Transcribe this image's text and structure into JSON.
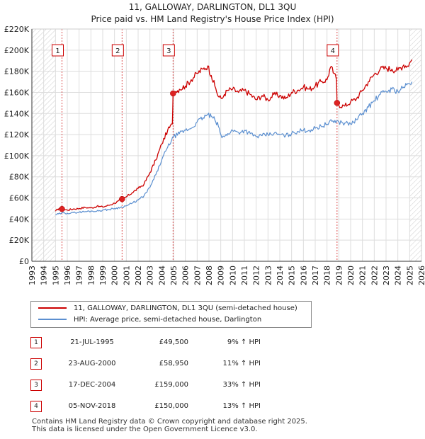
{
  "title": {
    "line1": "11, GALLOWAY, DARLINGTON, DL1 3QU",
    "line2": "Price paid vs. HM Land Registry's House Price Index (HPI)"
  },
  "colors": {
    "property": "#cc0000",
    "hpi": "#5b8fd0",
    "grid": "#dddddd",
    "marker": "#dd2222"
  },
  "chart_data": {
    "type": "line",
    "title": "11, GALLOWAY, DARLINGTON, DL1 3QU — Price paid vs. HM Land Registry's House Price Index (HPI)",
    "xlabel": "",
    "ylabel": "",
    "xlim": [
      1993,
      2026
    ],
    "ylim": [
      0,
      220000
    ],
    "grid": true,
    "x_ticks": [
      "1993",
      "1994",
      "1995",
      "1996",
      "1997",
      "1998",
      "1999",
      "2000",
      "2001",
      "2002",
      "2003",
      "2004",
      "2005",
      "2006",
      "2007",
      "2008",
      "2009",
      "2010",
      "2011",
      "2012",
      "2013",
      "2014",
      "2015",
      "2016",
      "2017",
      "2018",
      "2019",
      "2020",
      "2021",
      "2022",
      "2023",
      "2024",
      "2025",
      "2026"
    ],
    "y_ticks": [
      "£0",
      "£20K",
      "£40K",
      "£60K",
      "£80K",
      "£100K",
      "£120K",
      "£140K",
      "£160K",
      "£180K",
      "£200K",
      "£220K"
    ],
    "hatched_ranges": [
      [
        1993.0,
        1995.0
      ],
      [
        2025.0,
        2026.0
      ]
    ],
    "series": [
      {
        "name": "11, GALLOWAY, DARLINGTON, DL1 3QU (semi-detached house)",
        "x": [
          1995.0,
          1995.3,
          1995.55,
          1996,
          1996.5,
          1997,
          1997.5,
          1998,
          1998.5,
          1999,
          1999.5,
          2000,
          2000.3,
          2000.64,
          2001,
          2001.5,
          2002,
          2002.5,
          2003,
          2003.5,
          2004,
          2004.5,
          2004.9,
          2004.96,
          2005.2,
          2005.5,
          2006,
          2006.5,
          2007,
          2007.5,
          2007.9,
          2008.2,
          2008.5,
          2008.8,
          2009.1,
          2009.3,
          2009.6,
          2010,
          2010.5,
          2011,
          2011.5,
          2012,
          2012.5,
          2013,
          2013.5,
          2014,
          2014.5,
          2015,
          2015.5,
          2016,
          2016.5,
          2017,
          2017.5,
          2018,
          2018.3,
          2018.6,
          2018.8,
          2018.85,
          2019,
          2019.5,
          2020,
          2020.5,
          2021,
          2021.5,
          2022,
          2022.5,
          2023,
          2023.5,
          2024,
          2024.5,
          2024.8,
          2025,
          2025.2
        ],
        "values": [
          47500,
          50000,
          49500,
          48500,
          49500,
          50000,
          51000,
          50500,
          52000,
          51500,
          53000,
          55000,
          57000,
          58950,
          61000,
          65000,
          69000,
          73000,
          84000,
          96000,
          111000,
          124000,
          130000,
          159000,
          161000,
          163000,
          166000,
          172000,
          178000,
          182000,
          185000,
          176000,
          166000,
          156000,
          154000,
          158000,
          162000,
          163000,
          160000,
          162000,
          158000,
          153000,
          157000,
          153000,
          158000,
          157000,
          154000,
          160000,
          162000,
          165000,
          163000,
          166000,
          170000,
          172000,
          184000,
          178000,
          172000,
          150000,
          148000,
          147000,
          151000,
          154000,
          162000,
          170000,
          177000,
          182000,
          183000,
          182000,
          181000,
          186000,
          185000,
          188000,
          191000
        ]
      },
      {
        "name": "HPI: Average price, semi-detached house, Darlington",
        "x": [
          1995.0,
          1995.5,
          1996,
          1996.5,
          1997,
          1997.5,
          1998,
          1998.5,
          1999,
          1999.5,
          2000,
          2000.5,
          2001,
          2001.5,
          2002,
          2002.5,
          2003,
          2003.5,
          2004,
          2004.5,
          2005,
          2005.5,
          2006,
          2006.5,
          2007,
          2007.5,
          2007.9,
          2008.2,
          2008.5,
          2008.8,
          2009.1,
          2009.3,
          2009.6,
          2010,
          2010.5,
          2011,
          2011.5,
          2012,
          2012.5,
          2013,
          2013.5,
          2014,
          2014.5,
          2015,
          2015.5,
          2016,
          2016.5,
          2017,
          2017.5,
          2018,
          2018.5,
          2019,
          2019.5,
          2020,
          2020.5,
          2021,
          2021.5,
          2022,
          2022.5,
          2023,
          2023.5,
          2024,
          2024.5,
          2025,
          2025.2
        ],
        "values": [
          44000,
          45500,
          45500,
          46000,
          46500,
          47000,
          47500,
          47500,
          48500,
          49000,
          50000,
          51000,
          52500,
          55000,
          58000,
          62000,
          70000,
          82000,
          96000,
          108000,
          118000,
          121000,
          124000,
          126000,
          132000,
          136000,
          139000,
          137000,
          134000,
          128000,
          117000,
          118000,
          121000,
          124000,
          122000,
          124000,
          121000,
          118000,
          119000,
          120000,
          121000,
          120000,
          119000,
          121000,
          123000,
          124000,
          124000,
          126000,
          128000,
          130000,
          133000,
          132000,
          131000,
          130000,
          134000,
          140000,
          146000,
          152000,
          158000,
          161000,
          163000,
          161000,
          165000,
          168000,
          170000
        ]
      }
    ],
    "sales": [
      {
        "label": "1",
        "date": "21-JUL-1995",
        "x": 1995.55,
        "price": 49500,
        "price_text": "£49,500",
        "hpi_text": "9% ↑ HPI"
      },
      {
        "label": "2",
        "date": "23-AUG-2000",
        "x": 2000.64,
        "price": 58950,
        "price_text": "£58,950",
        "hpi_text": "11% ↑ HPI"
      },
      {
        "label": "3",
        "date": "17-DEC-2004",
        "x": 2004.96,
        "price": 159000,
        "price_text": "£159,000",
        "hpi_text": "33% ↑ HPI"
      },
      {
        "label": "4",
        "date": "05-NOV-2018",
        "x": 2018.85,
        "price": 150000,
        "price_text": "£150,000",
        "hpi_text": "13% ↑ HPI"
      }
    ]
  },
  "legend": {
    "property_label": "11, GALLOWAY, DARLINGTON, DL1 3QU (semi-detached house)",
    "hpi_label": "HPI: Average price, semi-detached house, Darlington"
  },
  "footer": {
    "line1": "Contains HM Land Registry data © Crown copyright and database right 2025.",
    "line2": "This data is licensed under the Open Government Licence v3.0."
  }
}
